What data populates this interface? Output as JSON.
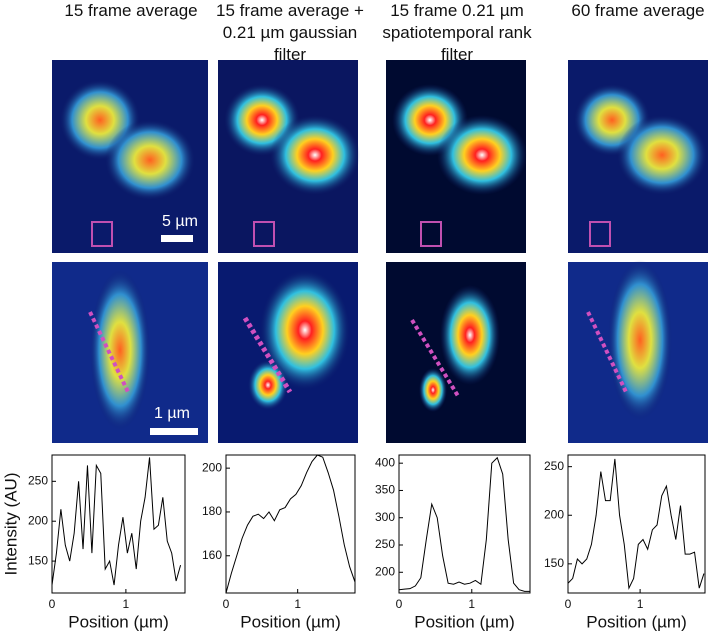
{
  "scale_labels": [
    "5 µm",
    "1 µm"
  ],
  "chart_data": [
    {
      "type": "line",
      "title": "15 frame average",
      "ylabel": "Intensity (AU)",
      "xlabel": "Position (µm)",
      "x": [
        0,
        0.06,
        0.12,
        0.18,
        0.24,
        0.3,
        0.36,
        0.42,
        0.48,
        0.54,
        0.6,
        0.66,
        0.72,
        0.78,
        0.84,
        0.9,
        0.96,
        1.02,
        1.08,
        1.14,
        1.2,
        1.26,
        1.32,
        1.38,
        1.44,
        1.5,
        1.56,
        1.62,
        1.68,
        1.74
      ],
      "values": [
        120,
        160,
        215,
        170,
        150,
        185,
        250,
        165,
        270,
        160,
        270,
        260,
        140,
        150,
        120,
        170,
        205,
        160,
        185,
        140,
        200,
        230,
        280,
        190,
        195,
        230,
        175,
        160,
        125,
        145
      ],
      "xlim": [
        0,
        1.8
      ],
      "ylim": [
        110,
        283
      ],
      "xticks": [
        0,
        1
      ],
      "yticks": [
        150,
        200,
        250
      ]
    },
    {
      "type": "line",
      "title": "15 frame average + 0.21 µm gaussian filter",
      "xlabel": "Position (µm)",
      "x": [
        0,
        0.075,
        0.15,
        0.225,
        0.3,
        0.375,
        0.45,
        0.525,
        0.6,
        0.675,
        0.75,
        0.825,
        0.9,
        0.975,
        1.05,
        1.125,
        1.2,
        1.275,
        1.35,
        1.425,
        1.5,
        1.575,
        1.65,
        1.725,
        1.8
      ],
      "values": [
        143,
        152,
        160,
        168,
        174,
        178,
        179,
        177,
        180,
        176,
        181,
        182,
        186,
        188,
        192,
        198,
        203,
        206,
        205,
        198,
        190,
        178,
        165,
        155,
        148
      ],
      "xlim": [
        0,
        1.8
      ],
      "ylim": [
        143,
        206
      ],
      "xticks": [
        0,
        1
      ],
      "yticks": [
        160,
        180,
        200
      ]
    },
    {
      "type": "line",
      "title": "15 frame 0.21 µm spatiotemporal rank filter",
      "xlabel": "Position (µm)",
      "x": [
        0,
        0.075,
        0.15,
        0.225,
        0.3,
        0.375,
        0.45,
        0.525,
        0.6,
        0.675,
        0.75,
        0.825,
        0.9,
        0.975,
        1.05,
        1.125,
        1.2,
        1.275,
        1.35,
        1.425,
        1.5,
        1.575,
        1.65,
        1.725,
        1.8
      ],
      "values": [
        168,
        169,
        170,
        175,
        190,
        260,
        325,
        300,
        230,
        180,
        178,
        182,
        178,
        180,
        185,
        178,
        260,
        400,
        410,
        380,
        260,
        180,
        168,
        165,
        165
      ],
      "xlim": [
        0,
        1.8
      ],
      "ylim": [
        162,
        415
      ],
      "xticks": [
        0,
        1
      ],
      "yticks": [
        200,
        250,
        300,
        350,
        400
      ]
    },
    {
      "type": "line",
      "title": "60 frame average",
      "xlabel": "Position (µm)",
      "x": [
        0,
        0.065,
        0.13,
        0.195,
        0.26,
        0.325,
        0.39,
        0.455,
        0.52,
        0.585,
        0.65,
        0.715,
        0.78,
        0.845,
        0.91,
        0.975,
        1.04,
        1.105,
        1.17,
        1.235,
        1.3,
        1.365,
        1.43,
        1.495,
        1.56,
        1.625,
        1.69,
        1.755,
        1.82,
        1.885
      ],
      "values": [
        130,
        135,
        155,
        150,
        155,
        170,
        200,
        245,
        215,
        215,
        258,
        200,
        170,
        125,
        135,
        170,
        175,
        165,
        185,
        190,
        220,
        230,
        200,
        175,
        210,
        160,
        160,
        162,
        125,
        140
      ],
      "xlim": [
        0,
        1.9
      ],
      "ylim": [
        120,
        262
      ],
      "xticks": [
        0,
        1
      ],
      "yticks": [
        150,
        200,
        250
      ]
    }
  ]
}
